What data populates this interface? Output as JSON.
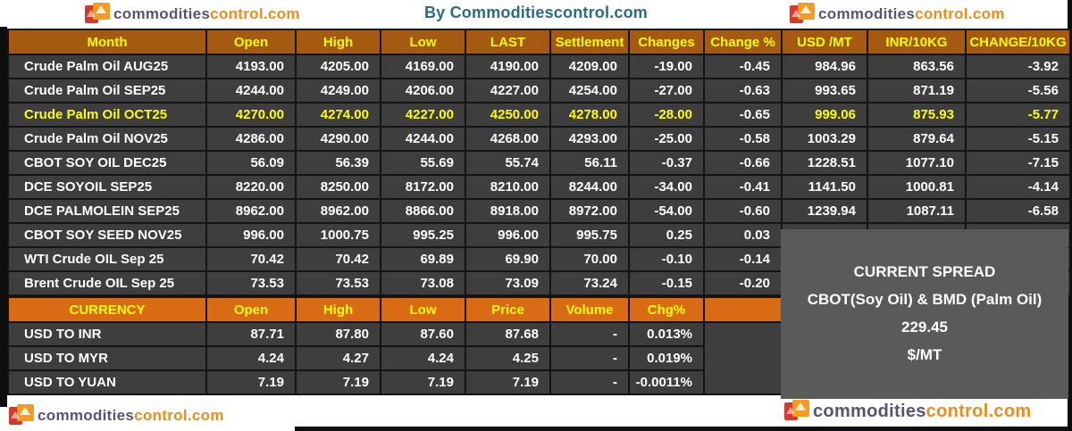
{
  "branding": {
    "logo_text_dark": "commodities",
    "logo_text_orange": "control.com",
    "byline": "By Commoditiescontrol.com"
  },
  "colors": {
    "table_header_bg": "#A45A10",
    "currency_header_bg": "#D96B14",
    "row_bg": "#3E3E3E",
    "spread_panel_bg": "#5A5A5A",
    "highlight_text": "#FFFF00",
    "byline_text": "#2A6C88",
    "logo_dark": "#5B5370",
    "logo_orange": "#EF8A1C"
  },
  "chart_data": [
    {
      "type": "table",
      "title": "Futures prices",
      "headers": [
        "Month",
        "Open",
        "High",
        "Low",
        "LAST",
        "Settlement",
        "Changes",
        "Change %",
        "USD /MT",
        "INR/10KG",
        "CHANGE/10KG"
      ],
      "rows": [
        {
          "month": "Crude Palm Oil AUG25",
          "open": "4193.00",
          "high": "4205.00",
          "low": "4169.00",
          "last": "4190.00",
          "settlement": "4209.00",
          "changes": "-19.00",
          "change_pct": "-0.45",
          "usd_mt": "984.96",
          "inr_10kg": "863.56",
          "change_10kg": "-3.92",
          "highlight": false
        },
        {
          "month": "Crude Palm Oil SEP25",
          "open": "4244.00",
          "high": "4249.00",
          "low": "4206.00",
          "last": "4227.00",
          "settlement": "4254.00",
          "changes": "-27.00",
          "change_pct": "-0.63",
          "usd_mt": "993.65",
          "inr_10kg": "871.19",
          "change_10kg": "-5.56",
          "highlight": false
        },
        {
          "month": "Crude Palm Oil OCT25",
          "open": "4270.00",
          "high": "4274.00",
          "low": "4227.00",
          "last": "4250.00",
          "settlement": "4278.00",
          "changes": "-28.00",
          "change_pct": "-0.65",
          "usd_mt": "999.06",
          "inr_10kg": "875.93",
          "change_10kg": "-5.77",
          "highlight": true
        },
        {
          "month": "Crude Palm Oil NOV25",
          "open": "4286.00",
          "high": "4290.00",
          "low": "4244.00",
          "last": "4268.00",
          "settlement": "4293.00",
          "changes": "-25.00",
          "change_pct": "-0.58",
          "usd_mt": "1003.29",
          "inr_10kg": "879.64",
          "change_10kg": "-5.15",
          "highlight": false
        },
        {
          "month": "CBOT SOY OIL DEC25",
          "open": "56.09",
          "high": "56.39",
          "low": "55.69",
          "last": "55.74",
          "settlement": "56.11",
          "changes": "-0.37",
          "change_pct": "-0.66",
          "usd_mt": "1228.51",
          "inr_10kg": "1077.10",
          "change_10kg": "-7.15",
          "highlight": false
        },
        {
          "month": "DCE SOYOIL SEP25",
          "open": "8220.00",
          "high": "8250.00",
          "low": "8172.00",
          "last": "8210.00",
          "settlement": "8244.00",
          "changes": "-34.00",
          "change_pct": "-0.41",
          "usd_mt": "1141.50",
          "inr_10kg": "1000.81",
          "change_10kg": "-4.14",
          "highlight": false
        },
        {
          "month": "DCE PALMOLEIN SEP25",
          "open": "8962.00",
          "high": "8962.00",
          "low": "8866.00",
          "last": "8918.00",
          "settlement": "8972.00",
          "changes": "-54.00",
          "change_pct": "-0.60",
          "usd_mt": "1239.94",
          "inr_10kg": "1087.11",
          "change_10kg": "-6.58",
          "highlight": false
        },
        {
          "month": "CBOT SOY SEED NOV25",
          "open": "996.00",
          "high": "1000.75",
          "low": "995.25",
          "last": "996.00",
          "settlement": "995.75",
          "changes": "0.25",
          "change_pct": "0.03",
          "usd_mt": "",
          "inr_10kg": "",
          "change_10kg": "",
          "highlight": false
        },
        {
          "month": "WTI Crude OIL Sep 25",
          "open": "70.42",
          "high": "70.42",
          "low": "69.89",
          "last": "69.90",
          "settlement": "70.00",
          "changes": "-0.10",
          "change_pct": "-0.14",
          "usd_mt": "",
          "inr_10kg": "",
          "change_10kg": "",
          "highlight": false
        },
        {
          "month": "Brent Crude OIL Sep 25",
          "open": "73.53",
          "high": "73.53",
          "low": "73.08",
          "last": "73.09",
          "settlement": "73.24",
          "changes": "-0.15",
          "change_pct": "-0.20",
          "usd_mt": "",
          "inr_10kg": "",
          "change_10kg": "",
          "highlight": false
        }
      ]
    },
    {
      "type": "table",
      "title": "Currency",
      "headers": [
        "CURRENCY",
        "Open",
        "High",
        "Low",
        "Price",
        "Volume",
        "Chg%",
        ""
      ],
      "rows": [
        {
          "pair": "USD TO INR",
          "open": "87.71",
          "high": "87.80",
          "low": "87.60",
          "price": "87.68",
          "volume": "-",
          "chg_pct": "0.013%"
        },
        {
          "pair": "USD TO MYR",
          "open": "4.24",
          "high": "4.27",
          "low": "4.24",
          "price": "4.25",
          "volume": "-",
          "chg_pct": "0.019%"
        },
        {
          "pair": "USD TO YUAN",
          "open": "7.19",
          "high": "7.19",
          "low": "7.19",
          "price": "7.19",
          "volume": "-",
          "chg_pct": "-0.0011%"
        }
      ]
    }
  ],
  "spread_panel": {
    "line1": "CURRENT SPREAD",
    "line2": "CBOT(Soy Oil) & BMD (Palm Oil)",
    "value": "229.45",
    "unit": "$/MT"
  }
}
